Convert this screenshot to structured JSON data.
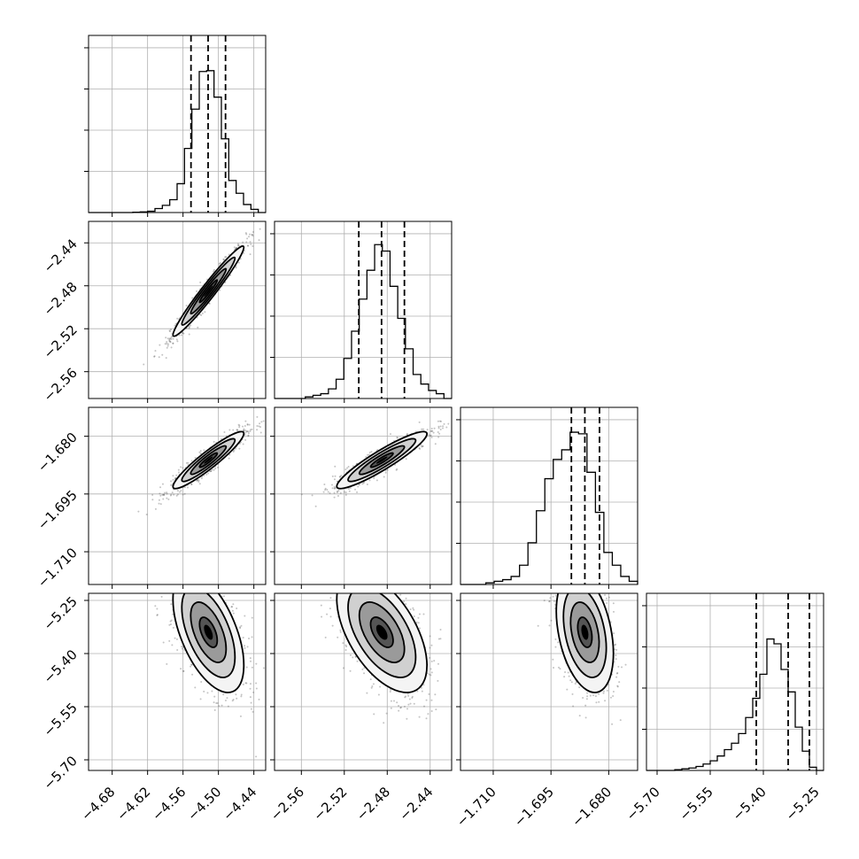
{
  "chart_data": {
    "type": "corner",
    "grid": true,
    "n_params": 4,
    "params": [
      {
        "range": [
          -4.72,
          -4.42
        ],
        "ticks": [
          "−4.68",
          "−4.62",
          "−4.56",
          "−4.50",
          "−4.44"
        ],
        "tick_values": [
          -4.68,
          -4.62,
          -4.56,
          -4.5,
          -4.44
        ],
        "quantiles": [
          -4.5465,
          -4.5175,
          -4.488
        ]
      },
      {
        "range": [
          -2.585,
          -2.42
        ],
        "ticks": [
          "−2.56",
          "−2.52",
          "−2.48",
          "−2.44"
        ],
        "tick_values": [
          -2.56,
          -2.52,
          -2.48,
          -2.44
        ],
        "quantiles": [
          -2.5065,
          -2.4853,
          -2.464
        ]
      },
      {
        "range": [
          -1.7185,
          -1.6725
        ],
        "ticks": [
          "−1.710",
          "−1.695",
          "−1.680"
        ],
        "tick_values": [
          -1.71,
          -1.695,
          -1.68
        ],
        "quantiles": [
          -1.6897,
          -1.6862,
          -1.6824
        ]
      },
      {
        "range": [
          -5.73,
          -5.23
        ],
        "ticks": [
          "−5.70",
          "−5.55",
          "−5.40",
          "−5.25"
        ],
        "tick_values": [
          -5.7,
          -5.55,
          -5.4,
          -5.25
        ],
        "quantiles": [
          -5.42,
          -5.33,
          -5.27
        ]
      }
    ],
    "histograms": [
      [
        0.0,
        0.0,
        0.0,
        0.0,
        0.0,
        0.0,
        0.002,
        0.004,
        0.008,
        0.025,
        0.045,
        0.08,
        0.18,
        0.4,
        0.645,
        0.88,
        0.885,
        0.72,
        0.46,
        0.2,
        0.12,
        0.05,
        0.02,
        0.0
      ],
      [
        0.0,
        0.0,
        0.0,
        0.0,
        0.01,
        0.02,
        0.03,
        0.06,
        0.12,
        0.25,
        0.42,
        0.62,
        0.8,
        0.96,
        0.92,
        0.7,
        0.5,
        0.31,
        0.15,
        0.09,
        0.05,
        0.03,
        0.0
      ],
      [
        0.0,
        0.0,
        0.0,
        0.01,
        0.02,
        0.03,
        0.05,
        0.12,
        0.26,
        0.46,
        0.66,
        0.78,
        0.84,
        0.95,
        0.94,
        0.7,
        0.45,
        0.2,
        0.12,
        0.05,
        0.02
      ],
      [
        0.0,
        0.0,
        0.0,
        0.0,
        0.005,
        0.01,
        0.015,
        0.025,
        0.04,
        0.06,
        0.09,
        0.13,
        0.17,
        0.23,
        0.33,
        0.45,
        0.6,
        0.82,
        0.79,
        0.63,
        0.49,
        0.27,
        0.12,
        0.02,
        0.0
      ]
    ],
    "hist_max": 1.0,
    "pairs": [
      {
        "x": 0,
        "y": 1,
        "center": [
          -4.517,
          -2.485
        ],
        "sd": [
          0.03,
          0.021
        ],
        "corr": 0.97
      },
      {
        "x": 0,
        "y": 2,
        "center": [
          -4.517,
          -1.6862
        ],
        "sd": [
          0.03,
          0.0037
        ],
        "corr": 0.93
      },
      {
        "x": 1,
        "y": 2,
        "center": [
          -2.485,
          -1.6862
        ],
        "sd": [
          0.021,
          0.0037
        ],
        "corr": 0.92
      },
      {
        "x": 0,
        "y": 3,
        "center": [
          -4.517,
          -5.34
        ],
        "sd": [
          0.03,
          0.085
        ],
        "corr": -0.55
      },
      {
        "x": 1,
        "y": 3,
        "center": [
          -2.485,
          -5.34
        ],
        "sd": [
          0.021,
          0.085
        ],
        "corr": -0.55
      },
      {
        "x": 2,
        "y": 3,
        "center": [
          -1.6862,
          -5.34
        ],
        "sd": [
          0.0037,
          0.085
        ],
        "corr": -0.35
      }
    ],
    "contour_levels_sigma": [
      0.5,
      1.0,
      1.5,
      2.0
    ],
    "colors": {
      "contour": "#000000",
      "points": "#555555",
      "fill": "#ffffff"
    }
  }
}
